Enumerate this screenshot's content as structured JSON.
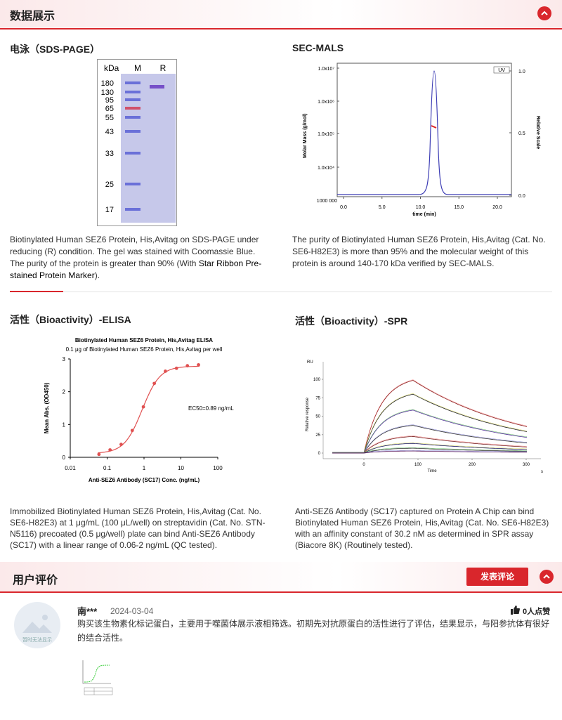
{
  "header": {
    "title": "数据展示"
  },
  "panels": [
    {
      "title": "电泳（SDS-PAGE）",
      "caption": "Biotinylated Human SEZ6 Protein, His,Avitag on SDS-PAGE under reducing (R) condition. The gel was stained with Coomassie Blue. The purity of the protein is greater than 90% (With ",
      "caption_link": "Star Ribbon Pre-stained Protein Marker",
      "caption_end": ").",
      "figure": {
        "unit": "kDa",
        "lanes": [
          "M",
          "R"
        ],
        "markers": [
          "180",
          "130",
          "95",
          "65",
          "55",
          "43",
          "33",
          "25",
          "17"
        ]
      }
    },
    {
      "title": "SEC-MALS",
      "caption": "The purity of Biotinylated Human SEZ6 Protein, His,Avitag (Cat. No. SE6-H82E3) is more than 95% and the molecular weight of this protein is around 140-170 kDa verified by SEC-MALS.",
      "figure": {
        "y_label": "Molar Mass (g/mol)",
        "y2_label": "Relative Scale",
        "x_label": "time (min)",
        "legend": "UV",
        "yticks": [
          "1.0x10⁷",
          "1.0x10⁶",
          "1.0x10⁵",
          "1.0x10⁴",
          "1000 000"
        ],
        "y2ticks": [
          "1.0",
          "0.5",
          "0.0"
        ],
        "xticks": [
          "0.0",
          "5.0",
          "10.0",
          "15.0",
          "20.0"
        ]
      }
    },
    {
      "title": "活性（Bioactivity）-ELISA",
      "caption": "Immobilized Biotinylated Human SEZ6 Protein, His,Avitag (Cat. No. SE6-H82E3) at 1 μg/mL (100 μL/well) on streptavidin (Cat. No. STN-N5116) precoated (0.5 μg/well) plate can bind Anti-SEZ6 Antibody (SC17) with a linear range of 0.06-2 ng/mL (QC tested).",
      "figure": {
        "title": "Biotinylated Human SEZ6 Protein, His,Avitag ELISA",
        "subtitle": "0.1 μg of Biotinylated Human SEZ6 Protein, His,Avitag per well",
        "y_label": "Mean Abs. (OD450)",
        "x_label": "Anti-SEZ6 Antibody (SC17) Conc. (ng/mL)",
        "annotation": "EC50=0.89 ng/mL",
        "yticks": [
          "3",
          "2",
          "1",
          "0"
        ],
        "xticks": [
          "0.01",
          "0.1",
          "1",
          "10",
          "100"
        ]
      }
    },
    {
      "title": "活性（Bioactivity）-SPR",
      "caption": "Anti-SEZ6 Antibody (SC17) captured on Protein A Chip can bind Biotinylated Human SEZ6 Protein, His,Avitag (Cat. No. SE6-H82E3) with an affinity constant of 30.2 nM as determined in SPR assay (Biacore 8K) (Routinely tested).",
      "figure": {
        "y_unit": "RU",
        "y_label": "Relative response",
        "x_label": "Time",
        "x_unit": "s",
        "yticks": [
          "100",
          "75",
          "50",
          "25",
          "0"
        ],
        "xticks": [
          "0",
          "100",
          "200",
          "300"
        ]
      }
    }
  ],
  "reviews": {
    "title": "用户评价",
    "button": "发表评论",
    "items": [
      {
        "avatar": "暂时无法显示",
        "name": "南***",
        "date": "2024-03-04",
        "likes": "0人点赞",
        "text": "购买该生物素化标记蛋白，主要用于噬菌体展示液相筛选。初期先对抗原蛋白的活性进行了评估，结果显示，与阳参抗体有很好的结合活性。"
      }
    ]
  }
}
